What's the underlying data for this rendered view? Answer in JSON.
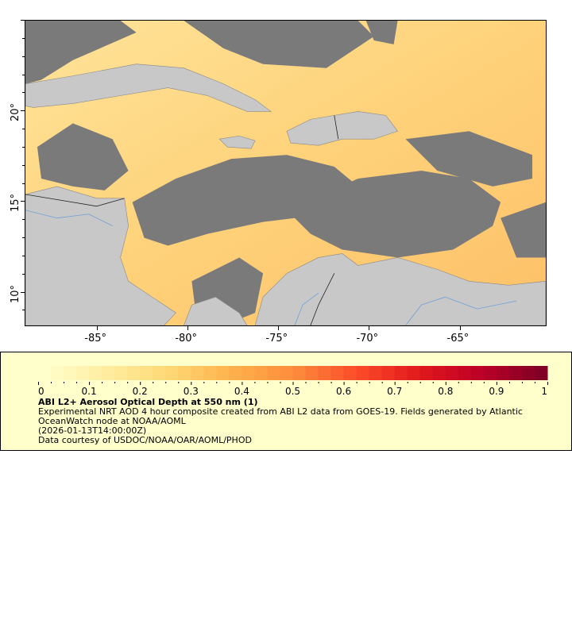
{
  "map": {
    "extent": {
      "lon": [
        -89.0,
        -60.2
      ],
      "lat": [
        8.1,
        25.0
      ]
    },
    "x_ticks": [
      {
        "value": -85,
        "label": "-85°"
      },
      {
        "value": -80,
        "label": "-80°"
      },
      {
        "value": -75,
        "label": "-75°"
      },
      {
        "value": -70,
        "label": "-70°"
      },
      {
        "value": -65,
        "label": "-65°"
      }
    ],
    "y_ticks": [
      {
        "value": 20,
        "label": "20°"
      },
      {
        "value": 15,
        "label": "15°"
      },
      {
        "value": 10,
        "label": "10°"
      }
    ],
    "colors": {
      "land": "#c8c8c8",
      "cloud_no_data": "#7a7a7a",
      "borders": "#555555",
      "rivers": "#6fa0d8"
    }
  },
  "legend": {
    "colorbar": {
      "min": 0,
      "max": 1,
      "steps": 40,
      "colormap": "YlOrRd",
      "tick_labels": [
        "0",
        "0.1",
        "0.2",
        "0.3",
        "0.4",
        "0.5",
        "0.6",
        "0.7",
        "0.8",
        "0.9",
        "1"
      ]
    },
    "title": "ABI L2+ Aerosol Optical Depth at 550 nm (1)",
    "description_line1": "Experimental NRT AOD 4 hour composite created from ABI L2 data from GOES-19. Fields generated by Atlantic",
    "description_line2": "OceanWatch node at NOAA/AOML",
    "timestamp": "(2026-01-13T14:00:00Z)",
    "credit": "Data courtesy of USDOC/NOAA/OAR/AOML/PHOD"
  }
}
